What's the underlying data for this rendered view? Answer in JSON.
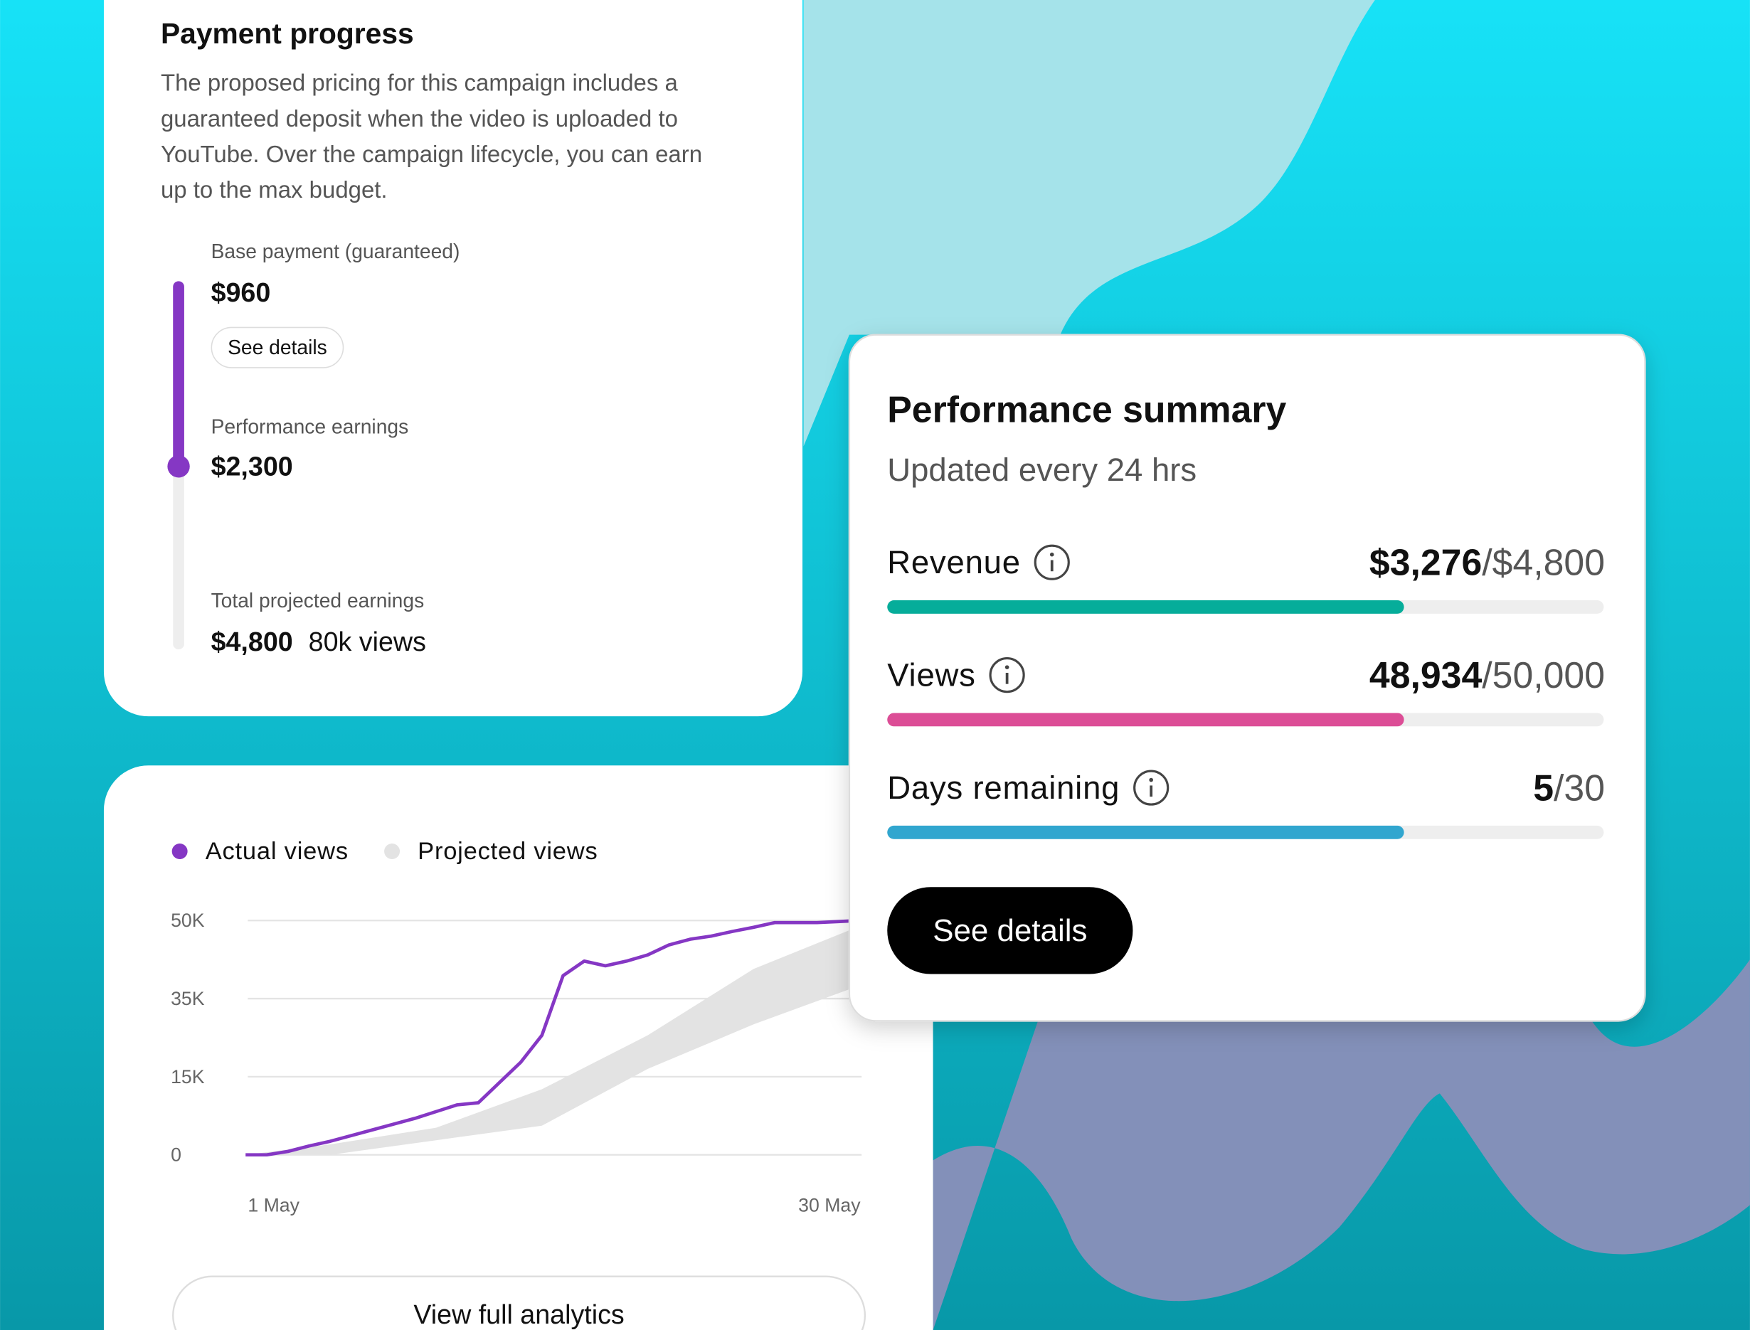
{
  "payment_progress": {
    "title": "Payment progress",
    "description": [
      "The proposed pricing for this campaign includes a",
      "guaranteed deposit when the video is uploaded to",
      "YouTube. Over the campaign lifecycle, you can earn",
      "up to the max budget."
    ],
    "steps": [
      {
        "label": "Base payment (guaranteed)",
        "amount": "$960",
        "button": "See details"
      },
      {
        "label": "Performance earnings",
        "amount": "$2,300"
      },
      {
        "label": "Total projected earnings",
        "amount": "$4,800",
        "note": "80k views"
      }
    ]
  },
  "performance_summary": {
    "title": "Performance summary",
    "subtitle": "Updated every 24 hrs",
    "metrics": [
      {
        "label": "Revenue",
        "value": "$3,276",
        "total": "/$4,800"
      },
      {
        "label": "Views",
        "value": "48,934",
        "total": "/50,000"
      },
      {
        "label": "Days remaining",
        "value": "5",
        "total": "/30"
      }
    ],
    "button": "See details"
  },
  "chart_data": {
    "type": "line",
    "x": [
      1,
      2,
      3,
      4,
      5,
      6,
      7,
      8,
      9,
      10,
      11,
      12,
      13,
      14,
      15,
      16,
      17,
      18,
      19,
      20,
      21,
      22,
      23,
      24,
      25,
      26,
      27,
      28,
      29,
      30
    ],
    "series": [
      {
        "name": "Actual views",
        "color": "#8537c4",
        "values": [
          0,
          0,
          650,
          1700,
          2600,
          3700,
          4800,
          5900,
          7000,
          8300,
          9600,
          10000,
          13900,
          18700,
          25600,
          39400,
          42200,
          41300,
          42200,
          43400,
          45300,
          46400,
          47000,
          47900,
          48700,
          49600,
          49600,
          49600,
          49800,
          50000
        ]
      },
      {
        "name": "Projected views",
        "color": "#e3e3e3",
        "x": [
          1,
          5,
          10,
          15,
          20,
          25,
          30
        ],
        "low": [
          0,
          0,
          2800,
          5600,
          17000,
          28400,
          37500
        ],
        "high": [
          0,
          2000,
          5200,
          12600,
          25600,
          40700,
          48900
        ]
      }
    ],
    "xlim": [
      1,
      30
    ],
    "xticks": [
      {
        "value": 1,
        "label": "1 May"
      },
      {
        "value": 30,
        "label": "30 May"
      }
    ],
    "ylim": [
      0,
      50000
    ],
    "yticks": [
      0,
      {
        "value": 15000,
        "label": "15K"
      },
      {
        "value": 35000,
        "label": "35K"
      },
      {
        "value": 50000,
        "label": "50K"
      }
    ],
    "grid": true,
    "button": "View full analytics"
  }
}
